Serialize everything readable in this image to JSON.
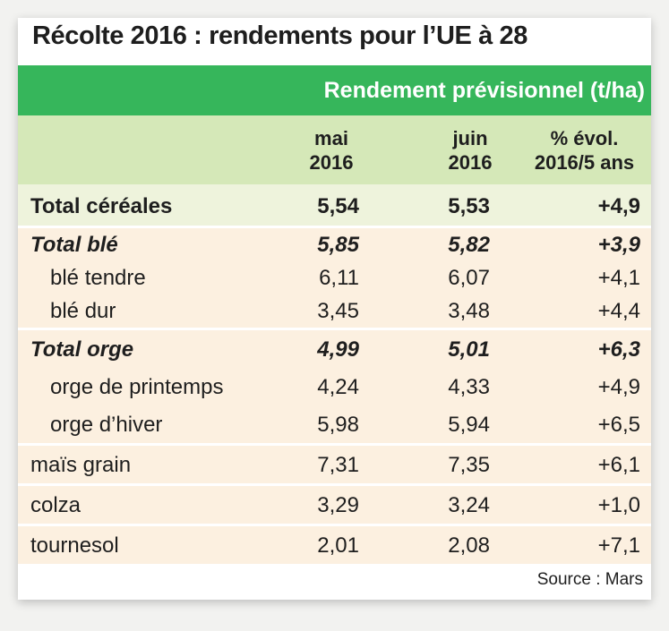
{
  "title": "Récolte 2016 : rendements pour l’UE à 28",
  "band_label": "Rendement prévisionnel (t/ha)",
  "columns": {
    "mai": "mai\n2016",
    "juin": "juin\n2016",
    "evol": "% évol.\n2016/5 ans"
  },
  "rows": [
    {
      "label": "Total céréales",
      "mai": "5,54",
      "juin": "5,53",
      "evol": "+4,9"
    },
    {
      "label": "Total blé",
      "mai": "5,85",
      "juin": "5,82",
      "evol": "+3,9"
    },
    {
      "label": "blé tendre",
      "mai": "6,11",
      "juin": "6,07",
      "evol": "+4,1"
    },
    {
      "label": "blé dur",
      "mai": "3,45",
      "juin": "3,48",
      "evol": "+4,4"
    },
    {
      "label": "Total orge",
      "mai": "4,99",
      "juin": "5,01",
      "evol": "+6,3"
    },
    {
      "label": "orge de printemps",
      "mai": "4,24",
      "juin": "4,33",
      "evol": "+4,9"
    },
    {
      "label": "orge d’hiver",
      "mai": "5,98",
      "juin": "5,94",
      "evol": "+6,5"
    },
    {
      "label": "maïs grain",
      "mai": "7,31",
      "juin": "7,35",
      "evol": "+6,1"
    },
    {
      "label": "colza",
      "mai": "3,29",
      "juin": "3,24",
      "evol": "+1,0"
    },
    {
      "label": "tournesol",
      "mai": "2,01",
      "juin": "2,08",
      "evol": "+7,1"
    }
  ],
  "source": "Source : Mars",
  "colors": {
    "band": "#36b65b",
    "header": "#d5e8b8",
    "cereals_row": "#eef3dc",
    "group_rows": "#fcf0e0"
  }
}
